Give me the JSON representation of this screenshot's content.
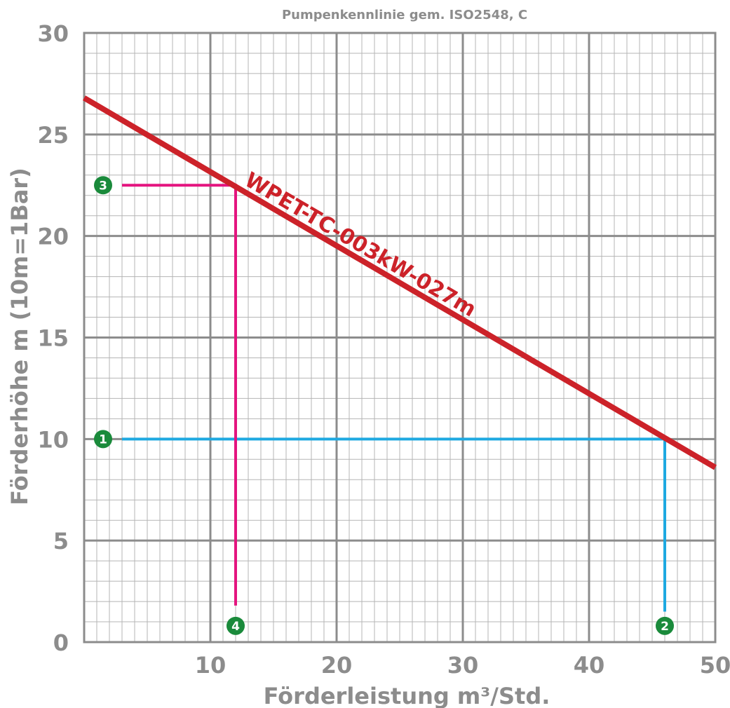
{
  "chart_data": {
    "type": "line",
    "title": "Pumpenkennlinie gem. ISO2548, C",
    "xlabel": "Förderleistung m³/Std.",
    "ylabel": "Förderhöhe m (10m=1Bar)",
    "xlim": [
      0,
      50
    ],
    "ylim": [
      0,
      30
    ],
    "x_ticks": [
      "10",
      "20",
      "30",
      "40",
      "50"
    ],
    "y_ticks": [
      "0",
      "5",
      "10",
      "15",
      "20",
      "25",
      "30"
    ],
    "grid": true,
    "series": [
      {
        "name": "WPET-TC-003kW-027m",
        "color": "#cc2229",
        "x": [
          0,
          50
        ],
        "y": [
          26.8,
          8.6
        ]
      }
    ],
    "guides": [
      {
        "color": "#1ea9e1",
        "points": [
          [
            3,
            10
          ],
          [
            46,
            10
          ],
          [
            46,
            1.5
          ]
        ],
        "markers": [
          {
            "label": "1",
            "x": 1.5,
            "y": 10
          },
          {
            "label": "2",
            "x": 46,
            "y": 0.8
          }
        ]
      },
      {
        "color": "#e4147f",
        "points": [
          [
            3,
            22.5
          ],
          [
            12,
            22.5
          ],
          [
            12,
            1.8
          ]
        ],
        "markers": [
          {
            "label": "3",
            "x": 1.5,
            "y": 22.5
          },
          {
            "label": "4",
            "x": 12,
            "y": 0.8
          }
        ]
      }
    ],
    "colors": {
      "axis_text": "#8c8c8c",
      "major_grid": "#8c8c8c",
      "minor_grid": "#b5b5b5",
      "marker_fill": "#1a8a3b"
    }
  }
}
